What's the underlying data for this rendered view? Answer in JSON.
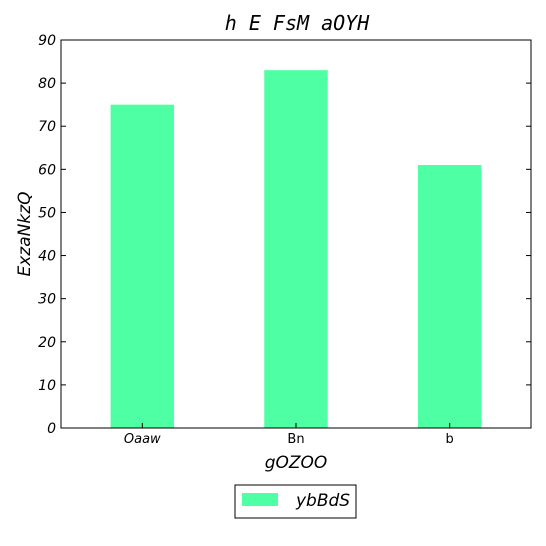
{
  "chart_data": {
    "type": "bar",
    "title": "h E FsM  aOYH",
    "xlabel": "gOZOO",
    "ylabel": "ExzaNkzQ",
    "categories": [
      "Oaaw",
      "Bn",
      "b"
    ],
    "series": [
      {
        "name": "ybBdS",
        "values": [
          75,
          83,
          61
        ],
        "color": "#4fffa4"
      }
    ],
    "ylim": [
      0,
      90
    ],
    "yticks": [
      0,
      10,
      20,
      30,
      40,
      50,
      60,
      70,
      80,
      90
    ],
    "grid": false,
    "legend": "below"
  }
}
